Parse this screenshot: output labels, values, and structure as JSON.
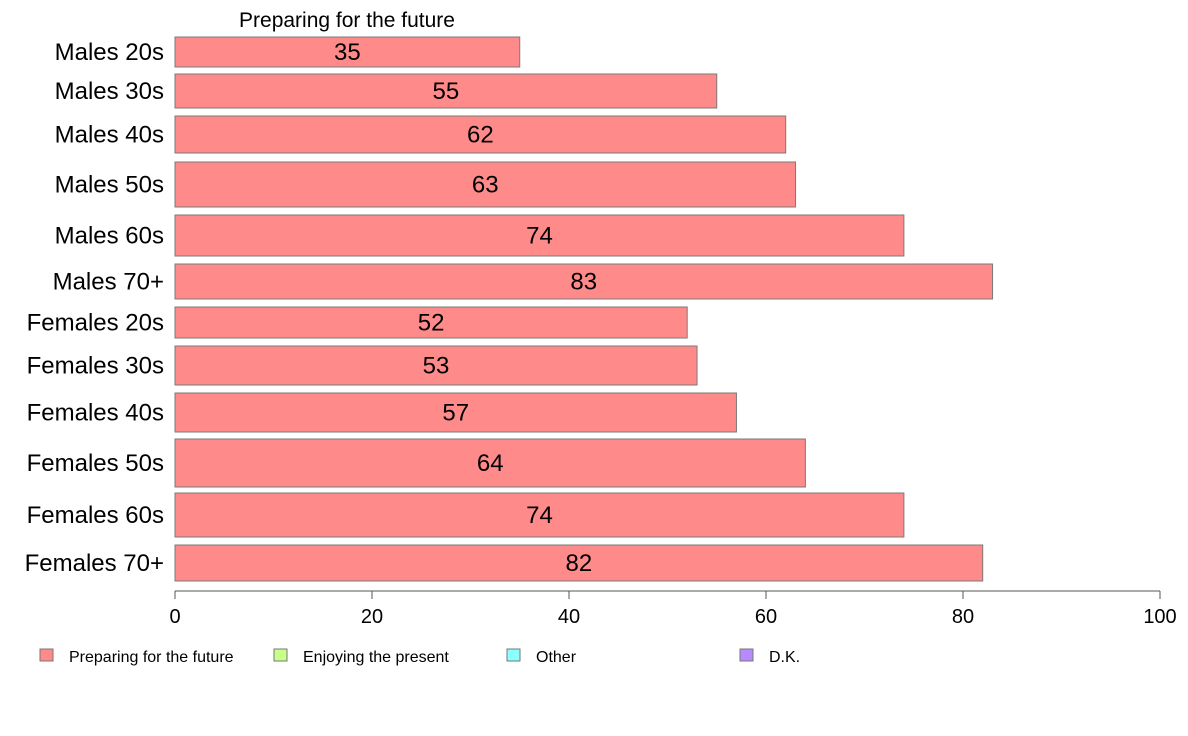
{
  "chart_data": {
    "type": "bar",
    "orientation": "horizontal",
    "title": "Preparing for the future",
    "categories": [
      "Males 20s",
      "Males 30s",
      "Males 40s",
      "Males 50s",
      "Males 60s",
      "Males 70+",
      "Females 20s",
      "Females 30s",
      "Females 40s",
      "Females 50s",
      "Females 60s",
      "Females 70+"
    ],
    "series": [
      {
        "name": "Preparing for the future",
        "color": "#ff8a8a",
        "values": [
          35,
          55,
          62,
          63,
          74,
          83,
          52,
          53,
          57,
          64,
          74,
          82
        ]
      }
    ],
    "xlim": [
      0,
      100
    ],
    "xticks": [
      0,
      20,
      40,
      60,
      80,
      100
    ],
    "grid": false,
    "legend": {
      "placement": "bottom",
      "entries": [
        {
          "label": "Preparing for the future",
          "color": "#ff8a8a"
        },
        {
          "label": "Enjoying the present",
          "color": "#c8ff8a"
        },
        {
          "label": "Other",
          "color": "#8affff"
        },
        {
          "label": "D.K.",
          "color": "#b88aff"
        }
      ]
    }
  }
}
